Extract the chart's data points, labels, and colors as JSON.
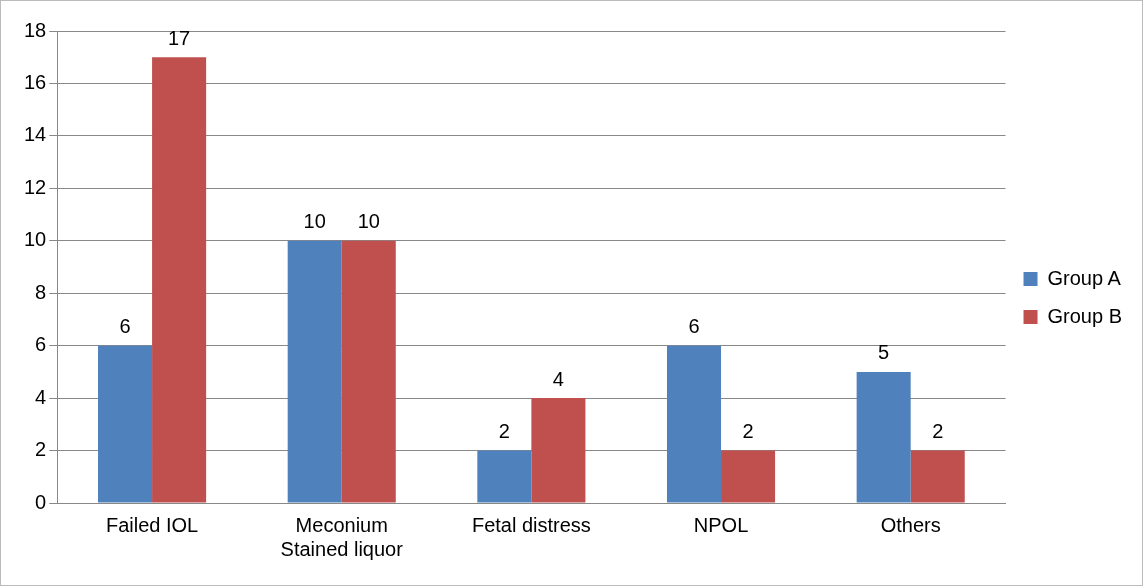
{
  "chart_data": {
    "type": "bar",
    "categories": [
      "Failed IOL",
      "Meconium Stained liquor",
      "Fetal distress",
      "NPOL",
      "Others"
    ],
    "series": [
      {
        "name": "Group A",
        "color": "#4f81bd",
        "values": [
          6,
          10,
          2,
          6,
          5
        ]
      },
      {
        "name": "Group B",
        "color": "#c0504d",
        "values": [
          17,
          10,
          4,
          2,
          2
        ]
      }
    ],
    "ylim": [
      0,
      18
    ],
    "yticks": [
      0,
      2,
      4,
      6,
      8,
      10,
      12,
      14,
      16,
      18
    ],
    "grid": "y",
    "legend": "right",
    "data_labels": true
  }
}
